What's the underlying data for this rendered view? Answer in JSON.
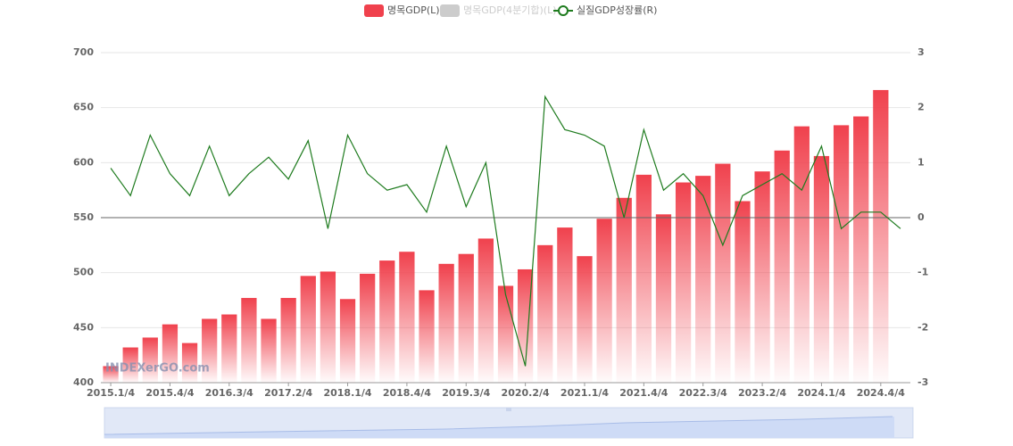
{
  "chart_data": {
    "type": "bar_line",
    "categories": [
      "2015.1/4",
      null,
      null,
      "2015.4/4",
      null,
      null,
      "2016.3/4",
      null,
      null,
      "2017.2/4",
      null,
      null,
      "2018.1/4",
      null,
      null,
      "2018.4/4",
      null,
      null,
      "2019.3/4",
      null,
      null,
      "2020.2/4",
      null,
      null,
      "2021.1/4",
      null,
      null,
      "2021.4/4",
      null,
      null,
      "2022.3/4",
      null,
      null,
      "2023.2/4",
      null,
      null,
      "2024.1/4",
      null,
      null,
      "2024.4/4",
      null
    ],
    "series": [
      {
        "name": "명목GDP(L)",
        "color": "#f0414d",
        "type": "bar",
        "values": [
          415,
          432,
          441,
          453,
          436,
          458,
          462,
          477,
          458,
          477,
          497,
          501,
          476,
          499,
          511,
          519,
          484,
          508,
          517,
          531,
          488,
          503,
          525,
          541,
          515,
          549,
          568,
          589,
          553,
          582,
          588,
          599,
          565,
          592,
          611,
          633,
          606,
          634,
          642,
          666,
          null
        ]
      },
      {
        "name": "실질GDP성장률(R)",
        "color": "#1e7b1e",
        "type": "line",
        "axis": "y2",
        "values": [
          0.9,
          0.4,
          1.5,
          0.8,
          0.4,
          1.3,
          0.4,
          0.8,
          1.1,
          0.7,
          1.4,
          -0.2,
          1.5,
          0.8,
          0.5,
          0.6,
          0.1,
          1.3,
          0.2,
          1.0,
          -1.4,
          -2.7,
          2.2,
          1.6,
          1.5,
          1.3,
          0.0,
          1.6,
          0.5,
          0.8,
          0.4,
          -0.5,
          0.4,
          0.6,
          0.8,
          0.5,
          1.3,
          -0.2,
          0.1,
          0.1,
          -0.2
        ]
      }
    ],
    "inactive_legend": [
      {
        "name": "명목GDP(4분기합)(L)",
        "color": "#cccccc"
      }
    ],
    "ylim": [
      400,
      700
    ],
    "yticks": [
      400,
      450,
      500,
      550,
      600,
      650,
      700
    ],
    "y2lim": [
      -3,
      3
    ],
    "y2ticks": [
      -3,
      -2,
      -1,
      0,
      1,
      2,
      3
    ],
    "grid": true,
    "watermark": "INDEXerGO.com"
  }
}
